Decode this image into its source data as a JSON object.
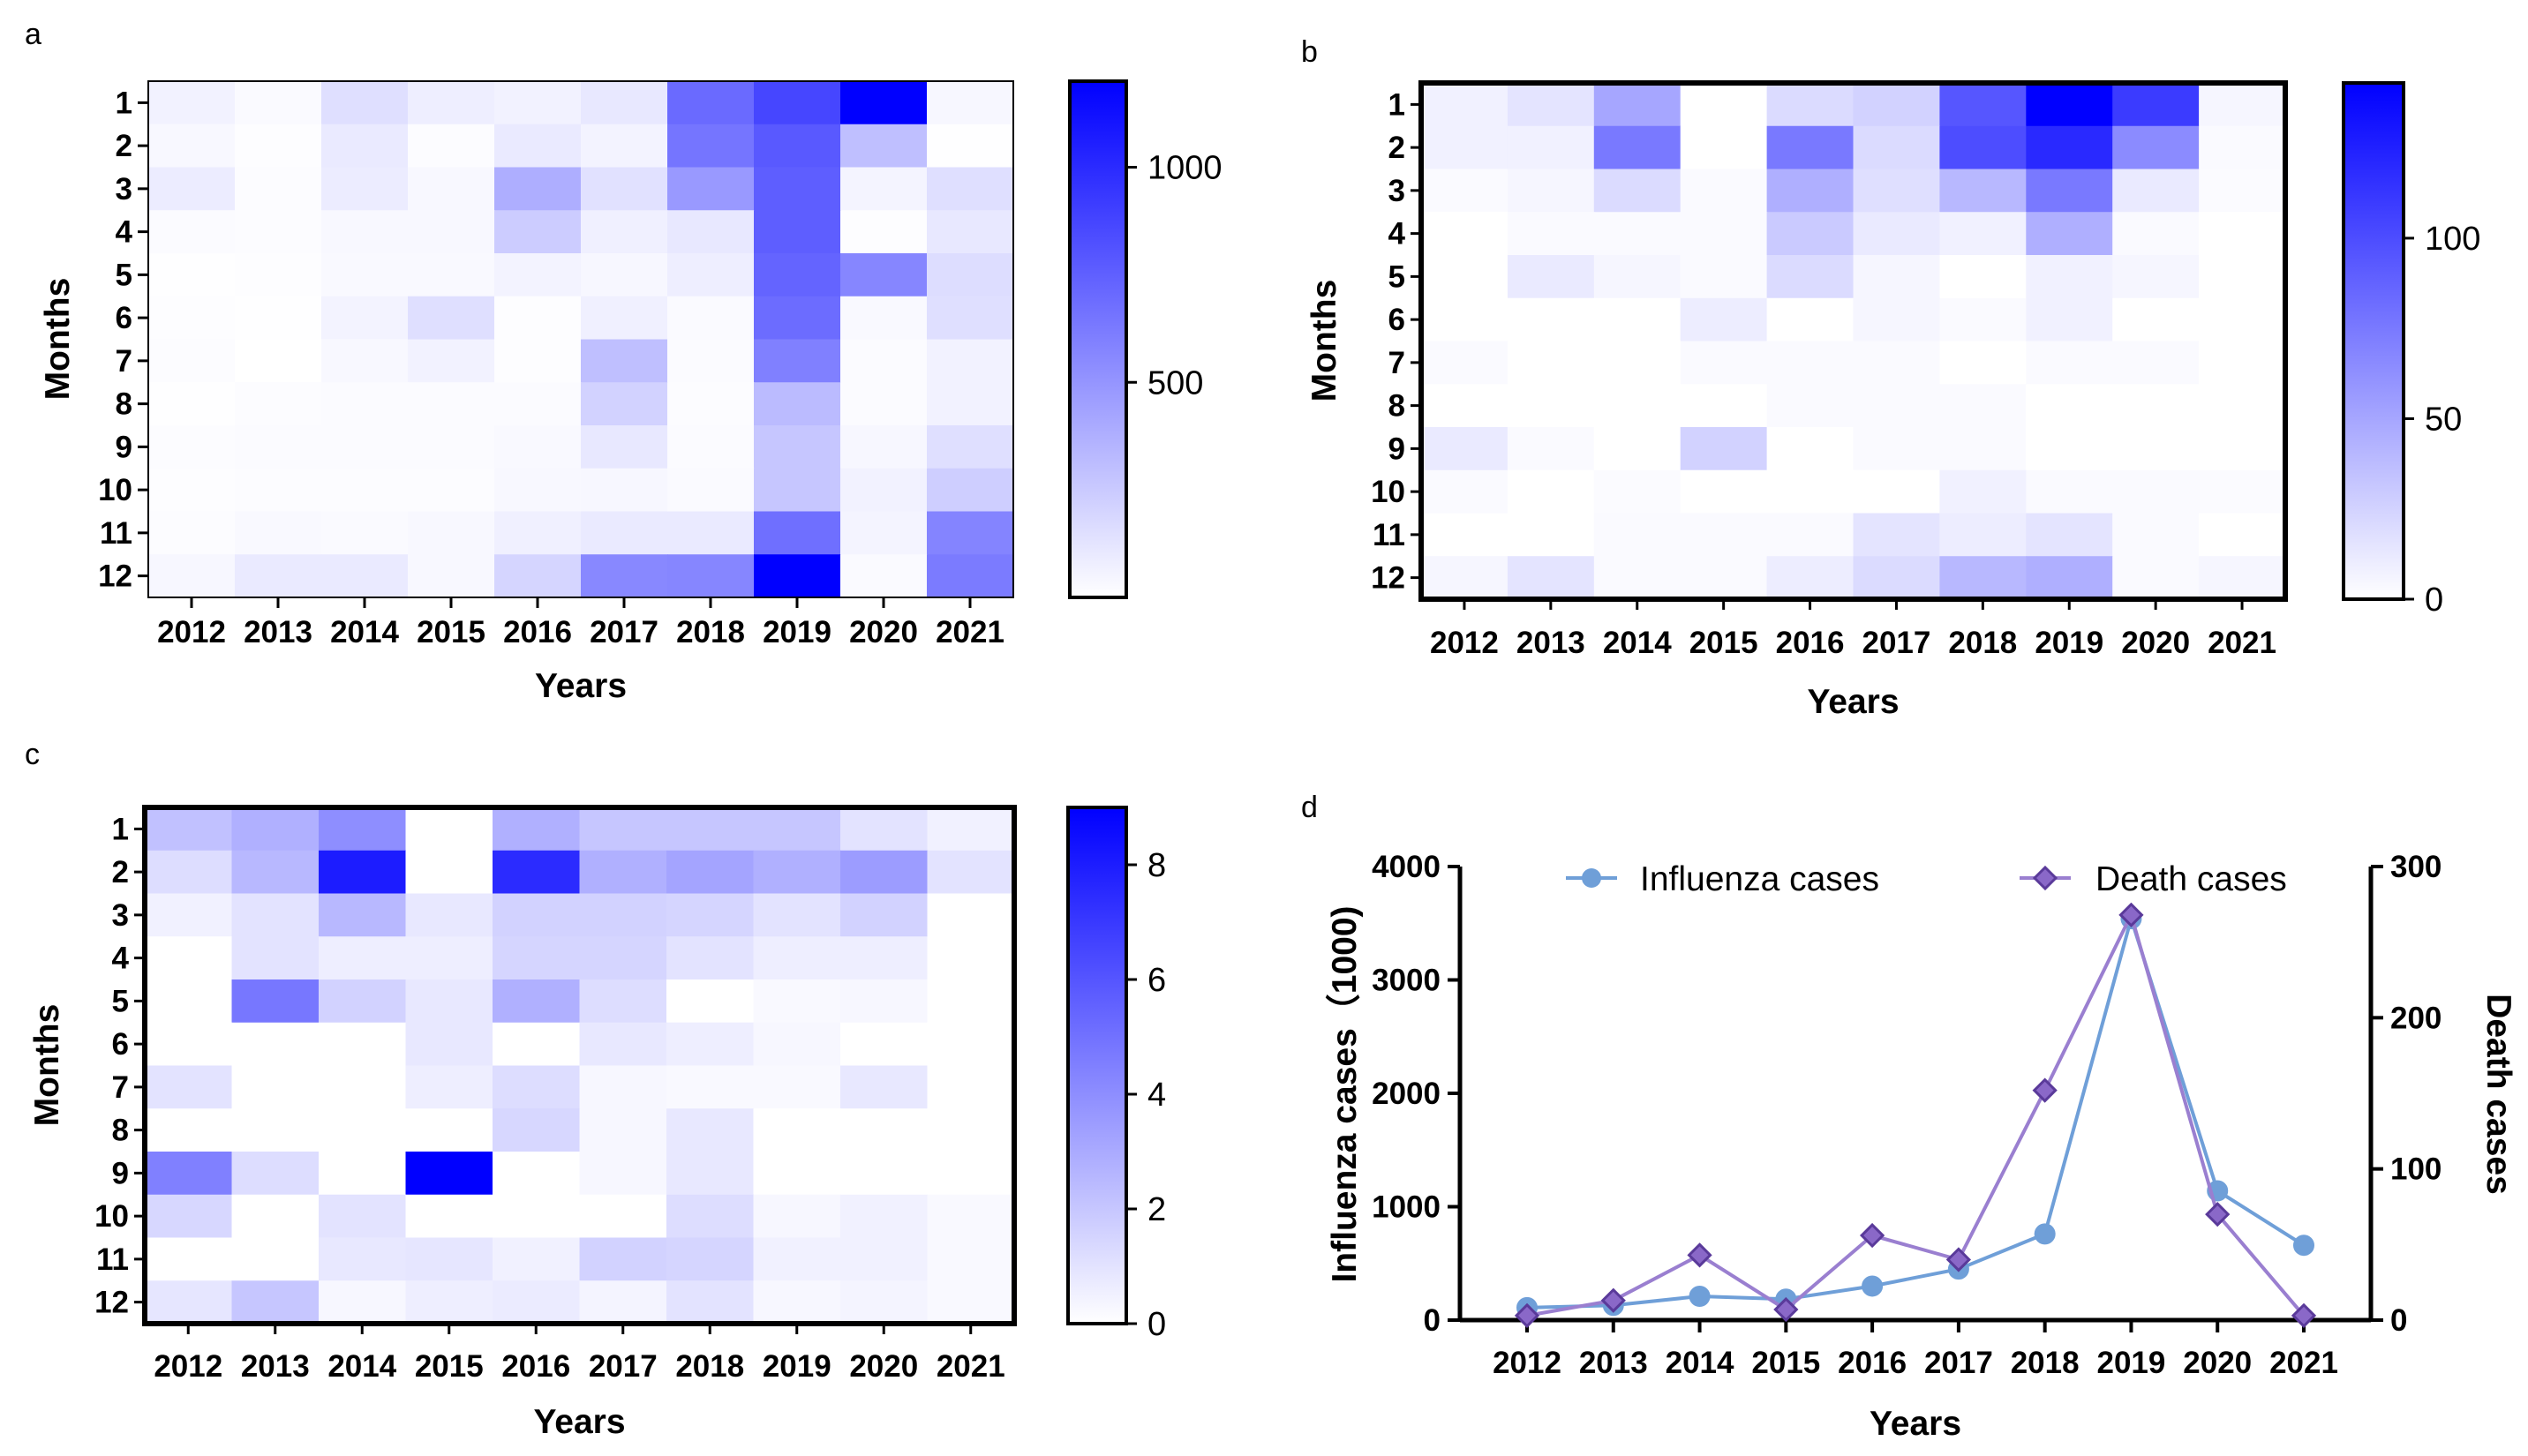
{
  "panels": [
    "a",
    "b",
    "c",
    "d"
  ],
  "chart_data": [
    {
      "type": "heatmap",
      "panel": "a",
      "xlabel": "Years",
      "ylabel": "Months",
      "x_categories": [
        "2012",
        "2013",
        "2014",
        "2015",
        "2016",
        "2017",
        "2018",
        "2019",
        "2020",
        "2021"
      ],
      "y_categories": [
        "1",
        "2",
        "3",
        "4",
        "5",
        "6",
        "7",
        "8",
        "9",
        "10",
        "11",
        "12"
      ],
      "colorbar": {
        "min": 0,
        "max": 1200,
        "ticks": [
          500,
          1000
        ],
        "low_color": "#ffffff",
        "high_color": "#0000ff"
      },
      "values": [
        [
          60,
          25,
          150,
          80,
          60,
          110,
          700,
          870,
          1200,
          40
        ],
        [
          35,
          10,
          100,
          15,
          100,
          55,
          650,
          780,
          300,
          5
        ],
        [
          90,
          15,
          90,
          35,
          380,
          140,
          480,
          760,
          50,
          150
        ],
        [
          20,
          15,
          35,
          35,
          240,
          70,
          110,
          760,
          10,
          110
        ],
        [
          5,
          10,
          30,
          30,
          55,
          40,
          80,
          730,
          570,
          160
        ],
        [
          10,
          5,
          55,
          150,
          10,
          70,
          25,
          690,
          30,
          150
        ],
        [
          15,
          0,
          35,
          60,
          10,
          300,
          20,
          600,
          20,
          60
        ],
        [
          5,
          15,
          20,
          20,
          20,
          210,
          15,
          320,
          20,
          60
        ],
        [
          15,
          20,
          20,
          20,
          30,
          110,
          20,
          270,
          40,
          150
        ],
        [
          10,
          15,
          15,
          15,
          35,
          40,
          25,
          270,
          60,
          230
        ],
        [
          15,
          30,
          25,
          35,
          70,
          100,
          100,
          680,
          50,
          580
        ],
        [
          40,
          100,
          100,
          35,
          200,
          560,
          570,
          1200,
          25,
          620
        ]
      ]
    },
    {
      "type": "heatmap",
      "panel": "b",
      "xlabel": "Years",
      "ylabel": "Months",
      "x_categories": [
        "2012",
        "2013",
        "2014",
        "2015",
        "2016",
        "2017",
        "2018",
        "2019",
        "2020",
        "2021"
      ],
      "y_categories": [
        "1",
        "2",
        "3",
        "4",
        "5",
        "6",
        "7",
        "8",
        "9",
        "10",
        "11",
        "12"
      ],
      "colorbar": {
        "min": 0,
        "max": 143,
        "ticks": [
          0,
          50,
          100
        ],
        "low_color": "#ffffff",
        "high_color": "#0000ff"
      },
      "values": [
        [
          8,
          15,
          50,
          0,
          20,
          25,
          95,
          143,
          110,
          5
        ],
        [
          8,
          8,
          75,
          0,
          75,
          20,
          100,
          120,
          65,
          3
        ],
        [
          3,
          5,
          20,
          3,
          45,
          18,
          40,
          75,
          12,
          2
        ],
        [
          0,
          3,
          3,
          3,
          30,
          12,
          8,
          45,
          3,
          0
        ],
        [
          0,
          12,
          5,
          3,
          20,
          5,
          0,
          8,
          5,
          0
        ],
        [
          0,
          0,
          0,
          10,
          0,
          5,
          3,
          8,
          0,
          0
        ],
        [
          3,
          0,
          0,
          3,
          3,
          3,
          0,
          3,
          3,
          0
        ],
        [
          0,
          0,
          0,
          0,
          3,
          3,
          3,
          0,
          0,
          0
        ],
        [
          12,
          3,
          0,
          25,
          0,
          3,
          3,
          0,
          0,
          0
        ],
        [
          3,
          0,
          2,
          0,
          0,
          0,
          8,
          3,
          3,
          2
        ],
        [
          0,
          0,
          3,
          3,
          3,
          15,
          10,
          15,
          3,
          0
        ],
        [
          5,
          15,
          3,
          3,
          10,
          20,
          40,
          45,
          3,
          5
        ]
      ]
    },
    {
      "type": "heatmap",
      "panel": "c",
      "xlabel": "Years",
      "ylabel": "Months",
      "x_categories": [
        "2012",
        "2013",
        "2014",
        "2015",
        "2016",
        "2017",
        "2018",
        "2019",
        "2020",
        "2021"
      ],
      "y_categories": [
        "1",
        "2",
        "3",
        "4",
        "5",
        "6",
        "7",
        "8",
        "9",
        "10",
        "11",
        "12"
      ],
      "colorbar": {
        "min": 0,
        "max": 9,
        "ticks": [
          0,
          2,
          4,
          6,
          8
        ],
        "low_color": "#ffffff",
        "high_color": "#0000ff"
      },
      "values": [
        [
          2.2,
          2.8,
          4.0,
          0,
          2.8,
          2.0,
          2.0,
          2.0,
          1.0,
          0.5
        ],
        [
          1.2,
          2.5,
          8.0,
          0,
          7.5,
          2.8,
          3.2,
          2.8,
          3.5,
          1.0
        ],
        [
          0.5,
          1.0,
          2.5,
          0.8,
          1.6,
          1.6,
          1.5,
          1.0,
          1.6,
          0
        ],
        [
          0,
          1.0,
          0.6,
          0.6,
          1.5,
          1.5,
          1.0,
          0.6,
          0.6,
          0
        ],
        [
          0,
          4.8,
          1.6,
          0.8,
          2.8,
          1.2,
          0,
          0.2,
          0.3,
          0
        ],
        [
          0,
          0,
          0,
          0.8,
          0,
          0.8,
          0.6,
          0.3,
          0,
          0
        ],
        [
          1.0,
          0,
          0,
          0.6,
          1.2,
          0.3,
          0.2,
          0.2,
          0.8,
          0
        ],
        [
          0,
          0,
          0,
          0,
          1.4,
          0.3,
          0.8,
          0,
          0,
          0
        ],
        [
          4.5,
          1.2,
          0,
          9.0,
          0,
          0.3,
          0.8,
          0,
          0,
          0
        ],
        [
          1.4,
          0,
          1.0,
          0,
          0,
          0,
          1.2,
          0.3,
          0.5,
          0.2
        ],
        [
          0,
          0,
          0.8,
          0.9,
          0.5,
          1.6,
          1.5,
          0.5,
          0.5,
          0.2
        ],
        [
          0.9,
          2.0,
          0.3,
          0.6,
          0.7,
          0.4,
          1.0,
          0.3,
          0.4,
          0.2
        ]
      ]
    },
    {
      "type": "line",
      "panel": "d",
      "xlabel": "Years",
      "ylabel": "Influenza cases（1000)",
      "y2label": "Death cases",
      "x": [
        "2012",
        "2013",
        "2014",
        "2015",
        "2016",
        "2017",
        "2018",
        "2019",
        "2020",
        "2021"
      ],
      "ylim": [
        0,
        4000
      ],
      "yticks": [
        0,
        1000,
        2000,
        3000,
        4000
      ],
      "y2lim": [
        0,
        300
      ],
      "y2ticks": [
        0,
        100,
        200,
        300
      ],
      "legend_position": "top",
      "series": [
        {
          "name": "Influenza cases",
          "axis": "left",
          "marker": "circle",
          "color": "#6f9fd8",
          "values": [
            110,
            130,
            210,
            185,
            300,
            450,
            760,
            3540,
            1140,
            660
          ]
        },
        {
          "name": "Death cases",
          "axis": "right",
          "marker": "diamond",
          "color": "#9a7fd0",
          "values": [
            3,
            13,
            43,
            7,
            56,
            40,
            152,
            268,
            70,
            3
          ]
        }
      ]
    }
  ]
}
